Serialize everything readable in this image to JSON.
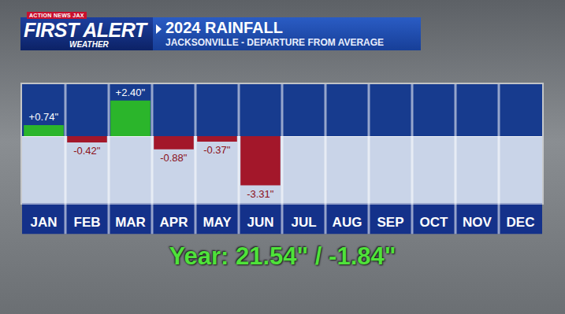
{
  "header": {
    "network": "ACTION NEWS JAX",
    "brand": "FIRST ALERT",
    "brand_sub": "WEATHER"
  },
  "chart_data": {
    "type": "bar",
    "title": "2024 RAINFALL",
    "subtitle": "JACKSONVILLE - DEPARTURE FROM AVERAGE",
    "categories": [
      "JAN",
      "FEB",
      "MAR",
      "APR",
      "MAY",
      "JUN",
      "JUL",
      "AUG",
      "SEP",
      "OCT",
      "NOV",
      "DEC"
    ],
    "values": [
      0.74,
      -0.42,
      2.4,
      -0.88,
      -0.37,
      -3.31,
      null,
      null,
      null,
      null,
      null,
      null
    ],
    "value_labels": [
      "+0.74\"",
      "-0.42\"",
      "+2.40\"",
      "-0.88\"",
      "-0.37\"",
      "-3.31\"",
      null,
      null,
      null,
      null,
      null,
      null
    ],
    "colors": [
      "#2bb52b",
      "#a3172a",
      "#2bb52b",
      "#a3172a",
      "#a3172a",
      "#a3172a",
      null,
      null,
      null,
      null,
      null,
      null
    ],
    "data_labels": true,
    "ylim": [
      -4.5,
      3.5
    ],
    "yticks": [
      0
    ],
    "tick_labels": "x",
    "grid": false,
    "annotations": [
      "Year: 21.54\" / -1.84\""
    ]
  }
}
